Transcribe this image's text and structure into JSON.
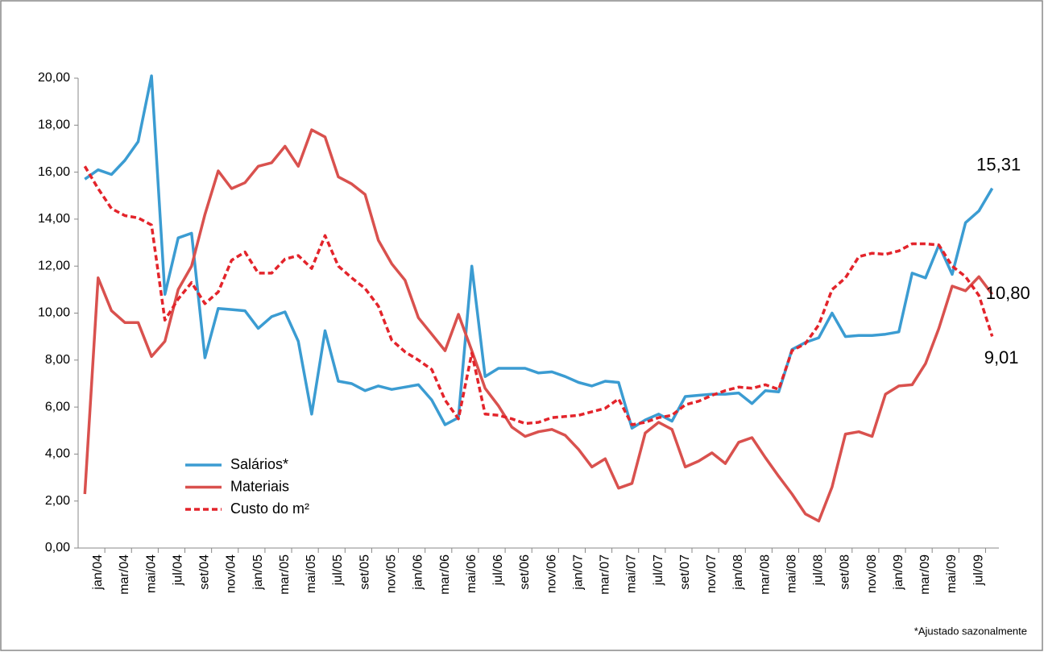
{
  "chart_data": {
    "type": "line",
    "note": "*Ajustado sazonalmente",
    "categories": [
      null,
      "jan/04",
      null,
      "mar/04",
      null,
      "mai/04",
      null,
      "jul/04",
      null,
      "set/04",
      null,
      "nov/04",
      null,
      "jan/05",
      null,
      "mar/05",
      null,
      "mai/05",
      null,
      "jul/05",
      null,
      "set/05",
      null,
      "nov/05",
      null,
      "jan/06",
      null,
      "mar/06",
      null,
      "mai/06",
      null,
      "jul/06",
      null,
      "set/06",
      null,
      "nov/06",
      null,
      "jan/07",
      null,
      "mar/07",
      null,
      "mai/07",
      null,
      "jul/07",
      null,
      "set/07",
      null,
      "nov/07",
      null,
      "jan/08",
      null,
      "mar/08",
      null,
      "mai/08",
      null,
      "jul/08",
      null,
      "set/08",
      null,
      "nov/08",
      null,
      "jan/09",
      null,
      "mar/09",
      null,
      "mai/09",
      null,
      "jul/09",
      null
    ],
    "series": [
      {
        "name": "Salários*",
        "color": "#3b9cd2",
        "dash": false,
        "values": [
          15.7,
          16.1,
          15.9,
          16.5,
          17.3,
          20.1,
          10.8,
          13.2,
          13.4,
          8.1,
          10.2,
          10.15,
          10.1,
          9.35,
          9.85,
          10.05,
          8.8,
          5.7,
          9.25,
          7.1,
          7.0,
          6.7,
          6.9,
          6.75,
          6.85,
          6.95,
          6.3,
          5.25,
          5.55,
          12.0,
          7.3,
          7.65,
          7.65,
          7.65,
          7.45,
          7.5,
          7.3,
          7.05,
          6.9,
          7.1,
          7.05,
          5.1,
          5.45,
          5.7,
          5.4,
          6.45,
          6.5,
          6.55,
          6.55,
          6.6,
          6.15,
          6.7,
          6.65,
          8.45,
          8.75,
          8.95,
          10.0,
          9.0,
          9.05,
          9.05,
          9.1,
          9.2,
          11.7,
          11.5,
          12.9,
          11.65,
          13.85,
          14.35,
          15.31
        ],
        "value_labels": [
          null,
          null,
          null,
          null,
          null,
          null,
          null,
          null,
          null,
          null,
          null,
          null,
          null,
          null,
          null,
          null,
          null,
          null,
          null,
          null,
          null,
          null,
          null,
          null,
          null,
          null,
          null,
          null,
          null,
          null,
          null,
          null,
          null,
          null,
          null,
          null,
          null,
          null,
          null,
          null,
          null,
          null,
          null,
          null,
          null,
          null,
          null,
          null,
          null,
          null,
          null,
          null,
          null,
          null,
          null,
          null,
          null,
          null,
          null,
          null,
          null,
          null,
          null,
          null,
          null,
          null,
          null,
          null,
          "15,31"
        ]
      },
      {
        "name": "Materiais",
        "color": "#d9514e",
        "dash": false,
        "values": [
          2.3,
          11.5,
          10.1,
          9.6,
          9.6,
          8.15,
          8.8,
          11.0,
          12.0,
          14.2,
          16.05,
          15.3,
          15.55,
          16.25,
          16.4,
          17.1,
          16.25,
          17.8,
          17.5,
          15.8,
          15.5,
          15.05,
          13.1,
          12.1,
          11.4,
          9.8,
          9.1,
          8.4,
          9.95,
          8.4,
          6.8,
          6.05,
          5.15,
          4.75,
          4.95,
          5.05,
          4.8,
          4.2,
          3.45,
          3.8,
          2.55,
          2.75,
          4.9,
          5.35,
          5.05,
          3.45,
          3.7,
          4.05,
          3.6,
          4.5,
          4.7,
          3.85,
          3.05,
          2.3,
          1.45,
          1.15,
          2.6,
          4.85,
          4.95,
          4.75,
          6.55,
          6.9,
          6.95,
          7.85,
          9.35,
          11.15,
          10.95,
          11.55,
          10.8
        ],
        "value_labels": [
          null,
          null,
          null,
          null,
          null,
          null,
          null,
          null,
          null,
          null,
          null,
          null,
          null,
          null,
          null,
          null,
          null,
          null,
          null,
          null,
          null,
          null,
          null,
          null,
          null,
          null,
          null,
          null,
          null,
          null,
          null,
          null,
          null,
          null,
          null,
          null,
          null,
          null,
          null,
          null,
          null,
          null,
          null,
          null,
          null,
          null,
          null,
          null,
          null,
          null,
          null,
          null,
          null,
          null,
          null,
          null,
          null,
          null,
          null,
          null,
          null,
          null,
          null,
          null,
          null,
          null,
          null,
          null,
          "10,80"
        ]
      },
      {
        "name": "Custo do m²",
        "color": "#e3242b",
        "dash": true,
        "values": [
          16.25,
          15.3,
          14.45,
          14.15,
          14.05,
          13.75,
          9.7,
          10.6,
          11.3,
          10.4,
          10.9,
          12.25,
          12.6,
          11.7,
          11.7,
          12.3,
          12.45,
          11.9,
          13.3,
          12.0,
          11.5,
          11.05,
          10.3,
          8.85,
          8.35,
          8.0,
          7.6,
          6.3,
          5.5,
          8.3,
          5.7,
          5.65,
          5.5,
          5.3,
          5.35,
          5.55,
          5.6,
          5.65,
          5.8,
          5.95,
          6.35,
          5.25,
          5.35,
          5.55,
          5.65,
          6.1,
          6.25,
          6.5,
          6.7,
          6.85,
          6.8,
          6.95,
          6.75,
          8.4,
          8.7,
          9.5,
          11.0,
          11.5,
          12.4,
          12.55,
          12.5,
          12.65,
          12.95,
          12.95,
          12.9,
          12.0,
          11.55,
          10.75,
          9.01
        ],
        "value_labels": [
          null,
          null,
          null,
          null,
          null,
          null,
          null,
          null,
          null,
          null,
          null,
          null,
          null,
          null,
          null,
          null,
          null,
          null,
          null,
          null,
          null,
          null,
          null,
          null,
          null,
          null,
          null,
          null,
          null,
          null,
          null,
          null,
          null,
          null,
          null,
          null,
          null,
          null,
          null,
          null,
          null,
          null,
          null,
          null,
          null,
          null,
          null,
          null,
          null,
          null,
          null,
          null,
          null,
          null,
          null,
          null,
          null,
          null,
          null,
          null,
          null,
          null,
          null,
          null,
          null,
          null,
          null,
          null,
          "9,01"
        ]
      }
    ],
    "ylim": [
      0,
      20
    ],
    "yticks": [
      {
        "value": 0,
        "label": "0,00"
      },
      {
        "value": 2,
        "label": "2,00"
      },
      {
        "value": 4,
        "label": "4,00"
      },
      {
        "value": 6,
        "label": "6,00"
      },
      {
        "value": 8,
        "label": "8,00"
      },
      {
        "value": 10,
        "label": "10,00"
      },
      {
        "value": 12,
        "label": "12,00"
      },
      {
        "value": 14,
        "label": "14,00"
      },
      {
        "value": 16,
        "label": "16,00"
      },
      {
        "value": 18,
        "label": "18,00"
      },
      {
        "value": 20,
        "label": "20,00"
      }
    ],
    "grid": false,
    "legend": "lower-left"
  }
}
